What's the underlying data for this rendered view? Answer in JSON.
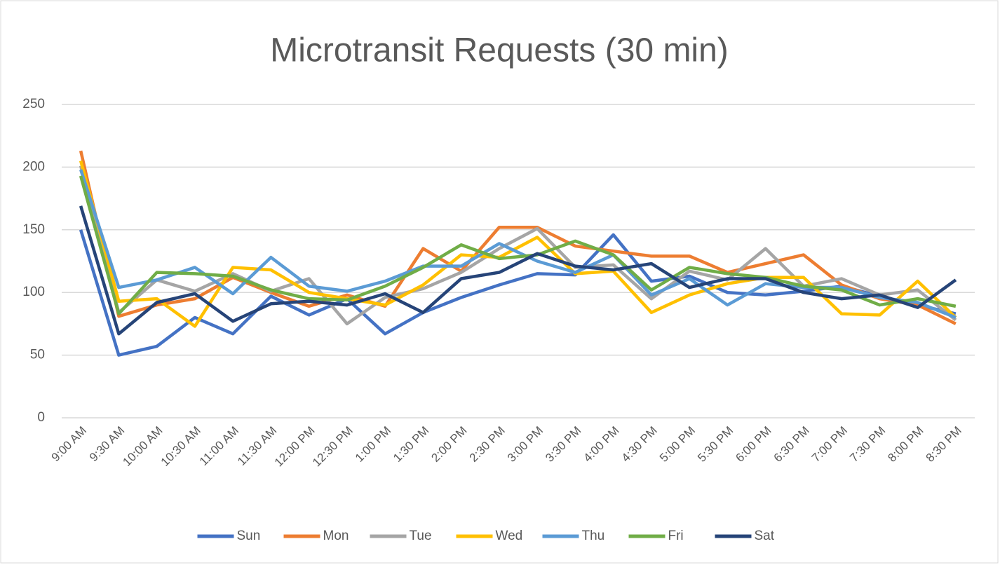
{
  "chart_data": {
    "type": "line",
    "title": "Microtransit Requests (30 min)",
    "categories": [
      "9:00 AM",
      "9:30 AM",
      "10:00 AM",
      "10:30 AM",
      "11:00 AM",
      "11:30 AM",
      "12:00 PM",
      "12:30 PM",
      "1:00 PM",
      "1:30 PM",
      "2:00 PM",
      "2:30 PM",
      "3:00 PM",
      "3:30 PM",
      "4:00 PM",
      "4:30 PM",
      "5:00 PM",
      "5:30 PM",
      "6:00 PM",
      "6:30 PM",
      "7:00 PM",
      "7:30 PM",
      "8:00 PM",
      "8:30 PM"
    ],
    "series": [
      {
        "name": "Sun",
        "color": "#4472c4",
        "values": [
          150,
          50,
          57,
          80,
          67,
          97,
          82,
          95,
          67,
          84,
          96,
          106,
          115,
          114,
          146,
          109,
          113,
          100,
          98,
          101,
          105,
          97,
          90,
          83
        ]
      },
      {
        "name": "Mon",
        "color": "#ed7d31",
        "values": [
          213,
          81,
          90,
          95,
          112,
          100,
          89,
          98,
          89,
          135,
          117,
          152,
          152,
          137,
          133,
          129,
          129,
          116,
          123,
          130,
          106,
          95,
          90,
          75
        ]
      },
      {
        "name": "Tue",
        "color": "#a5a5a5",
        "values": [
          201,
          84,
          110,
          101,
          115,
          101,
          111,
          75,
          96,
          103,
          116,
          135,
          151,
          120,
          122,
          95,
          117,
          110,
          135,
          105,
          111,
          98,
          102,
          78
        ]
      },
      {
        "name": "Wed",
        "color": "#ffc000",
        "values": [
          205,
          93,
          95,
          73,
          120,
          118,
          100,
          95,
          90,
          106,
          130,
          128,
          144,
          115,
          117,
          84,
          98,
          107,
          112,
          112,
          83,
          82,
          109,
          80
        ]
      },
      {
        "name": "Thu",
        "color": "#5b9bd5",
        "values": [
          198,
          104,
          110,
          120,
          99,
          128,
          105,
          101,
          109,
          121,
          121,
          139,
          125,
          116,
          130,
          98,
          111,
          90,
          107,
          104,
          104,
          96,
          92,
          80
        ]
      },
      {
        "name": "Fri",
        "color": "#70ad47",
        "values": [
          193,
          83,
          116,
          115,
          113,
          102,
          95,
          94,
          105,
          120,
          138,
          127,
          130,
          141,
          130,
          102,
          120,
          115,
          112,
          105,
          102,
          90,
          95,
          89
        ]
      },
      {
        "name": "Sat",
        "color": "#264478",
        "values": [
          169,
          67,
          92,
          99,
          77,
          91,
          93,
          90,
          99,
          84,
          111,
          116,
          131,
          121,
          118,
          123,
          104,
          111,
          111,
          100,
          95,
          98,
          88,
          110
        ]
      }
    ],
    "ylim": [
      0,
      250
    ],
    "yticks": [
      0,
      50,
      100,
      150,
      200,
      250
    ],
    "grid": true,
    "legend": "bottom"
  }
}
